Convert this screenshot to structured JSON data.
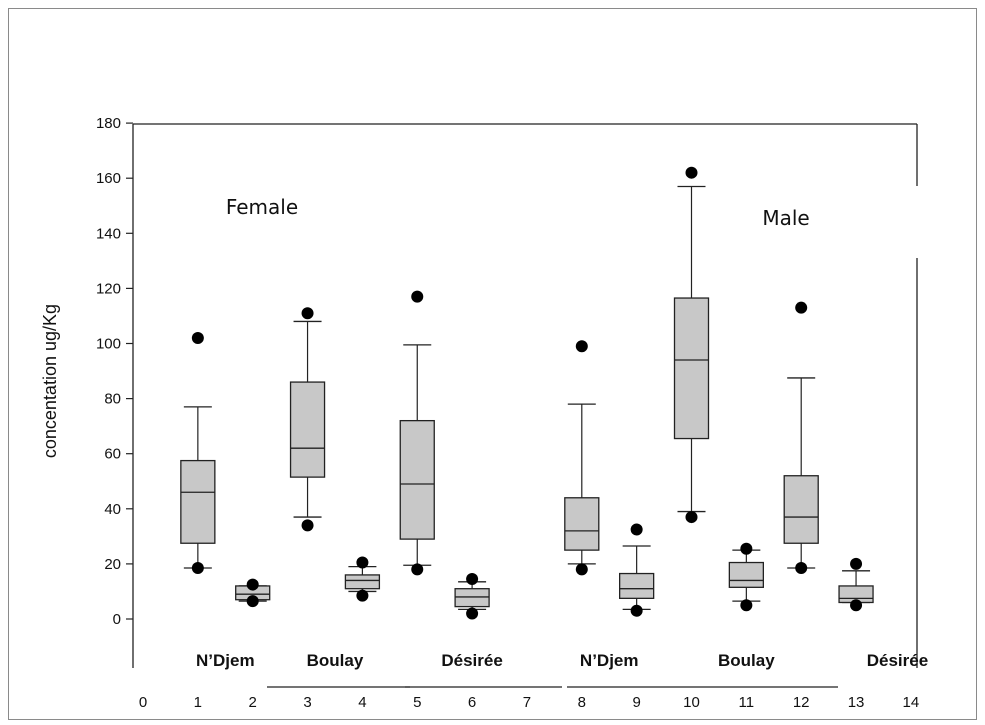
{
  "chart_data": {
    "type": "box",
    "ylabel": "concentation ug/Kg",
    "ylim": [
      0,
      180
    ],
    "yticks": [
      0,
      20,
      40,
      60,
      80,
      100,
      120,
      140,
      160,
      180
    ],
    "xticks": [
      0,
      1,
      2,
      3,
      4,
      5,
      6,
      7,
      8,
      9,
      10,
      11,
      12,
      13,
      14
    ],
    "xlim": [
      0,
      14
    ],
    "annotations": [
      "Female",
      "Male"
    ],
    "groups": [
      {
        "label": "N’Djem",
        "center": 1.5,
        "sex": "Female"
      },
      {
        "label": "Boulay",
        "center": 3.5,
        "sex": "Female"
      },
      {
        "label": "Désirée",
        "center": 6.0,
        "sex": "Female"
      },
      {
        "label": "N’Djem",
        "center": 8.5,
        "sex": "Male"
      },
      {
        "label": "Boulay",
        "center": 11.0,
        "sex": "Male"
      },
      {
        "label": "Désirée",
        "center": 13.5,
        "sex": "Male"
      }
    ],
    "boxes": [
      {
        "x": 1,
        "min": 18.5,
        "q1": 27.5,
        "median": 46,
        "q3": 57.5,
        "max": 77,
        "outliers": [
          102,
          18.5
        ]
      },
      {
        "x": 2,
        "min": 6.5,
        "q1": 7,
        "median": 9,
        "q3": 12,
        "max": 12,
        "outliers": [
          12.5,
          6.5
        ]
      },
      {
        "x": 3,
        "min": 37,
        "q1": 51.5,
        "median": 62,
        "q3": 86,
        "max": 108,
        "outliers": [
          111,
          34
        ]
      },
      {
        "x": 4,
        "min": 10,
        "q1": 11,
        "median": 14,
        "q3": 16,
        "max": 19,
        "outliers": [
          20.5,
          8.5
        ]
      },
      {
        "x": 5,
        "min": 19.5,
        "q1": 29,
        "median": 49,
        "q3": 72,
        "max": 99.5,
        "outliers": [
          117,
          18
        ]
      },
      {
        "x": 6,
        "min": 3.5,
        "q1": 4.5,
        "median": 8,
        "q3": 11,
        "max": 13.5,
        "outliers": [
          14.5,
          2
        ]
      },
      {
        "x": 8,
        "min": 20,
        "q1": 25,
        "median": 32,
        "q3": 44,
        "max": 78,
        "outliers": [
          99,
          18
        ]
      },
      {
        "x": 9,
        "min": 3.5,
        "q1": 7.5,
        "median": 11,
        "q3": 16.5,
        "max": 26.5,
        "outliers": [
          32.5,
          3
        ]
      },
      {
        "x": 10,
        "min": 39,
        "q1": 65.5,
        "median": 94,
        "q3": 116.5,
        "max": 157,
        "outliers": [
          162,
          37
        ]
      },
      {
        "x": 11,
        "min": 6.5,
        "q1": 11.5,
        "median": 14,
        "q3": 20.5,
        "max": 25,
        "outliers": [
          25.5,
          5
        ]
      },
      {
        "x": 12,
        "min": 18.5,
        "q1": 27.5,
        "median": 37,
        "q3": 52,
        "max": 87.5,
        "outliers": [
          113,
          18.5
        ]
      },
      {
        "x": 13,
        "min": 6,
        "q1": 6,
        "median": 7.5,
        "q3": 12,
        "max": 17.5,
        "outliers": [
          20,
          5
        ]
      }
    ],
    "box_color": "#c8c8c8",
    "line_color": "#222222",
    "grid": false
  }
}
